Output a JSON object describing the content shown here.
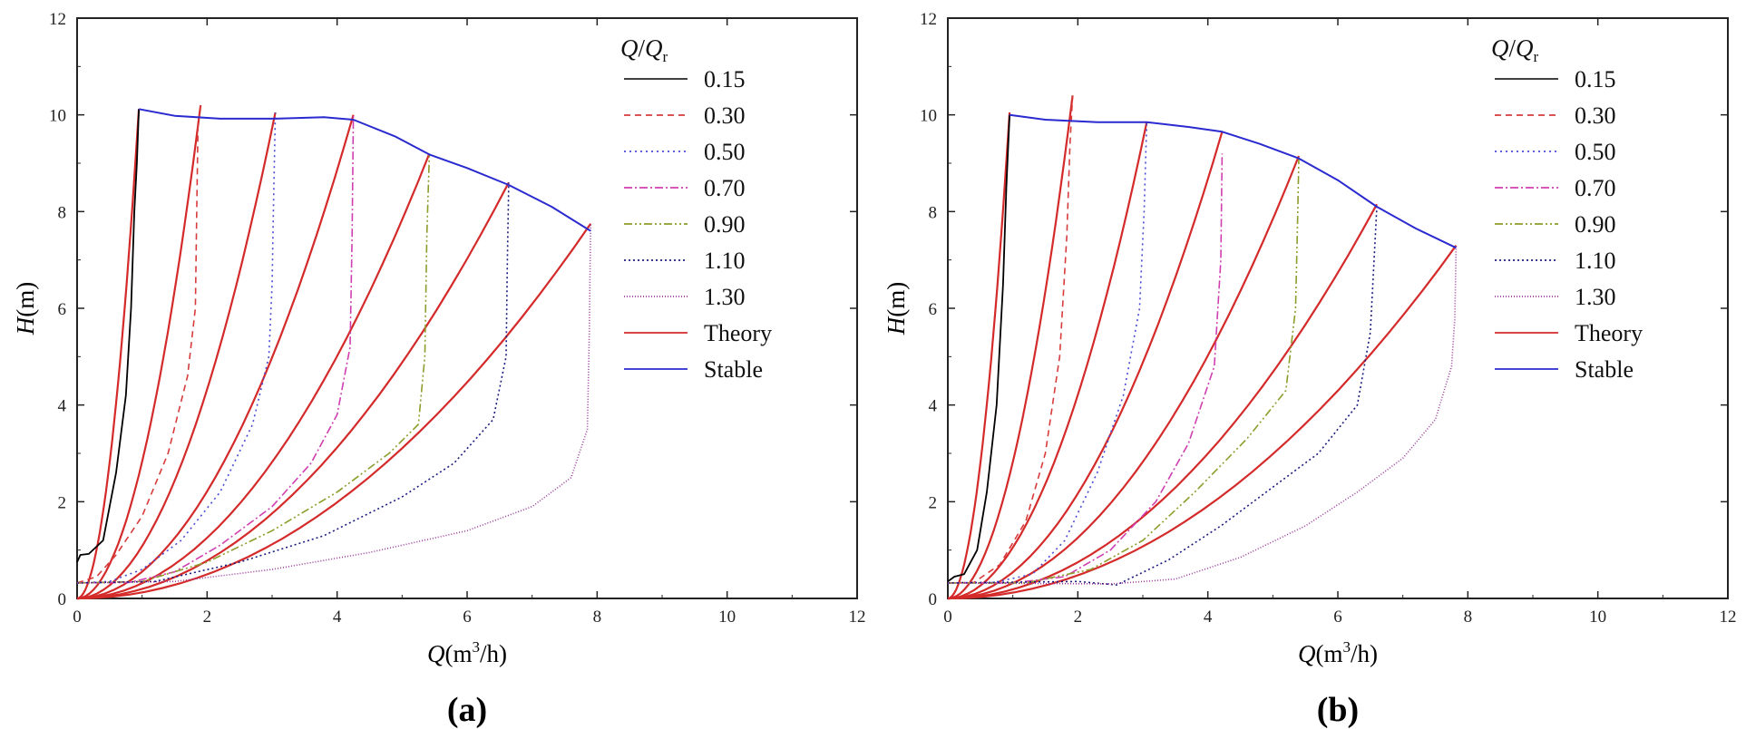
{
  "chart_data": [
    {
      "type": "line",
      "panel_label": "(a)",
      "xlabel": {
        "var": "Q",
        "unit_pre": "(m",
        "unit_sup": "3",
        "unit_post": "/h)"
      },
      "ylabel": {
        "var": "H",
        "unit": "(m)"
      },
      "xlim": [
        0,
        12
      ],
      "ylim": [
        0,
        12
      ],
      "xticks": [
        0,
        2,
        4,
        6,
        8,
        10,
        12
      ],
      "yticks": [
        0,
        2,
        4,
        6,
        8,
        10,
        12
      ],
      "legend": {
        "title_num": "Q",
        "title_sep": "/",
        "title_den": "Q",
        "title_sub": "r",
        "placement": "top-right"
      },
      "series": [
        {
          "name": "0.15",
          "color": "#000000",
          "dash": "",
          "points": [
            [
              0,
              0.75
            ],
            [
              0.05,
              0.9
            ],
            [
              0.18,
              0.92
            ],
            [
              0.4,
              1.2
            ],
            [
              0.6,
              2.6
            ],
            [
              0.75,
              4.2
            ],
            [
              0.83,
              6.0
            ],
            [
              0.88,
              8.0
            ],
            [
              0.92,
              9.0
            ],
            [
              0.95,
              10.12
            ]
          ]
        },
        {
          "name": "0.30",
          "color": "#d83b3b",
          "dash": "7,5",
          "points": [
            [
              0,
              0.32
            ],
            [
              0.3,
              0.45
            ],
            [
              0.6,
              0.9
            ],
            [
              1.0,
              1.7
            ],
            [
              1.4,
              3.0
            ],
            [
              1.7,
              4.6
            ],
            [
              1.82,
              6.0
            ],
            [
              1.84,
              8.0
            ],
            [
              1.86,
              9.8
            ],
            [
              1.9,
              10.2
            ]
          ]
        },
        {
          "name": "0.50",
          "color": "#4a4ad6",
          "dash": "2,4",
          "points": [
            [
              0,
              0.32
            ],
            [
              0.5,
              0.35
            ],
            [
              1.0,
              0.6
            ],
            [
              1.6,
              1.2
            ],
            [
              2.2,
              2.2
            ],
            [
              2.7,
              3.6
            ],
            [
              2.95,
              5.0
            ],
            [
              3.0,
              6.5
            ],
            [
              3.02,
              8.0
            ],
            [
              3.05,
              10.05
            ]
          ]
        },
        {
          "name": "0.70",
          "color": "#d03fb0",
          "dash": "9,3,2,3",
          "points": [
            [
              0,
              0.32
            ],
            [
              0.8,
              0.33
            ],
            [
              1.5,
              0.55
            ],
            [
              2.2,
              1.1
            ],
            [
              3.0,
              1.9
            ],
            [
              3.6,
              2.8
            ],
            [
              4.0,
              3.8
            ],
            [
              4.2,
              5.2
            ],
            [
              4.23,
              7.5
            ],
            [
              4.25,
              10.0
            ]
          ]
        },
        {
          "name": "0.90",
          "color": "#8e9c2a",
          "dash": "9,3,2,3,2,3",
          "points": [
            [
              0,
              0.32
            ],
            [
              1.0,
              0.35
            ],
            [
              2.0,
              0.75
            ],
            [
              3.0,
              1.4
            ],
            [
              4.0,
              2.2
            ],
            [
              4.8,
              3.0
            ],
            [
              5.25,
              3.6
            ],
            [
              5.35,
              5.0
            ],
            [
              5.38,
              7.5
            ],
            [
              5.42,
              9.2
            ]
          ]
        },
        {
          "name": "1.10",
          "color": "#1c1c80",
          "dash": "2,3",
          "points": [
            [
              0,
              0.32
            ],
            [
              1.2,
              0.35
            ],
            [
              2.5,
              0.75
            ],
            [
              3.8,
              1.3
            ],
            [
              5.0,
              2.1
            ],
            [
              5.8,
              2.8
            ],
            [
              6.4,
              3.7
            ],
            [
              6.6,
              5.0
            ],
            [
              6.62,
              7.0
            ],
            [
              6.64,
              8.6
            ]
          ]
        },
        {
          "name": "1.30",
          "color": "#9a3b9a",
          "dash": "1,2",
          "points": [
            [
              0,
              0.32
            ],
            [
              1.5,
              0.35
            ],
            [
              3.0,
              0.6
            ],
            [
              4.5,
              0.95
            ],
            [
              6.0,
              1.4
            ],
            [
              7.0,
              1.9
            ],
            [
              7.6,
              2.5
            ],
            [
              7.85,
              3.5
            ],
            [
              7.88,
              5.5
            ],
            [
              7.9,
              7.75
            ]
          ]
        }
      ],
      "theory": {
        "name": "Theory",
        "color": "#d42a2a",
        "end_points": [
          [
            0.95,
            10.12
          ],
          [
            1.9,
            10.2
          ],
          [
            3.05,
            10.05
          ],
          [
            4.25,
            10.0
          ],
          [
            5.42,
            9.2
          ],
          [
            6.64,
            8.6
          ],
          [
            7.9,
            7.75
          ]
        ]
      },
      "stable": {
        "name": "Stable",
        "color": "#2a2ad0",
        "points": [
          [
            0.95,
            10.12
          ],
          [
            1.5,
            9.98
          ],
          [
            2.2,
            9.92
          ],
          [
            3.05,
            9.92
          ],
          [
            3.8,
            9.95
          ],
          [
            4.25,
            9.9
          ],
          [
            4.9,
            9.55
          ],
          [
            5.42,
            9.18
          ],
          [
            6.0,
            8.9
          ],
          [
            6.64,
            8.55
          ],
          [
            7.3,
            8.1
          ],
          [
            7.9,
            7.6
          ]
        ]
      }
    },
    {
      "type": "line",
      "panel_label": "(b)",
      "xlabel": {
        "var": "Q",
        "unit_pre": "(m",
        "unit_sup": "3",
        "unit_post": "/h)"
      },
      "ylabel": {
        "var": "H",
        "unit": "(m)"
      },
      "xlim": [
        0,
        12
      ],
      "ylim": [
        0,
        12
      ],
      "xticks": [
        0,
        2,
        4,
        6,
        8,
        10,
        12
      ],
      "yticks": [
        0,
        2,
        4,
        6,
        8,
        10,
        12
      ],
      "legend": {
        "title_num": "Q",
        "title_sep": "/",
        "title_den": "Q",
        "title_sub": "r",
        "placement": "top-right"
      },
      "series": [
        {
          "name": "0.15",
          "color": "#000000",
          "dash": "",
          "points": [
            [
              0,
              0.35
            ],
            [
              0.1,
              0.45
            ],
            [
              0.25,
              0.5
            ],
            [
              0.45,
              1.0
            ],
            [
              0.6,
              2.2
            ],
            [
              0.75,
              4.0
            ],
            [
              0.85,
              6.5
            ],
            [
              0.9,
              8.5
            ],
            [
              0.95,
              10.0
            ]
          ]
        },
        {
          "name": "0.30",
          "color": "#d83b3b",
          "dash": "7,5",
          "points": [
            [
              0,
              0.32
            ],
            [
              0.4,
              0.33
            ],
            [
              0.8,
              0.7
            ],
            [
              1.2,
              1.6
            ],
            [
              1.5,
              3.0
            ],
            [
              1.72,
              5.0
            ],
            [
              1.83,
              7.5
            ],
            [
              1.88,
              9.4
            ],
            [
              1.92,
              10.4
            ]
          ]
        },
        {
          "name": "0.50",
          "color": "#4a4ad6",
          "dash": "2,4",
          "points": [
            [
              0,
              0.32
            ],
            [
              0.7,
              0.33
            ],
            [
              1.3,
              0.5
            ],
            [
              1.8,
              1.2
            ],
            [
              2.3,
              2.6
            ],
            [
              2.7,
              4.2
            ],
            [
              2.95,
              6.0
            ],
            [
              3.02,
              8.0
            ],
            [
              3.06,
              9.85
            ]
          ]
        },
        {
          "name": "0.70",
          "color": "#d03fb0",
          "dash": "9,3,2,3",
          "points": [
            [
              0,
              0.32
            ],
            [
              1.0,
              0.32
            ],
            [
              1.8,
              0.45
            ],
            [
              2.5,
              1.0
            ],
            [
              3.2,
              2.0
            ],
            [
              3.7,
              3.2
            ],
            [
              4.1,
              4.8
            ],
            [
              4.2,
              7.0
            ],
            [
              4.22,
              9.2
            ]
          ]
        },
        {
          "name": "0.90",
          "color": "#8e9c2a",
          "dash": "9,3,2,3,2,3",
          "points": [
            [
              0,
              0.32
            ],
            [
              1.2,
              0.32
            ],
            [
              2.2,
              0.6
            ],
            [
              3.0,
              1.2
            ],
            [
              3.8,
              2.2
            ],
            [
              4.6,
              3.3
            ],
            [
              5.2,
              4.3
            ],
            [
              5.35,
              6.0
            ],
            [
              5.38,
              7.8
            ],
            [
              5.4,
              9.1
            ]
          ]
        },
        {
          "name": "1.10",
          "color": "#1c1c80",
          "dash": "2,3",
          "points": [
            [
              0,
              0.32
            ],
            [
              2.0,
              0.35
            ],
            [
              2.6,
              0.28
            ],
            [
              3.4,
              0.8
            ],
            [
              4.2,
              1.5
            ],
            [
              5.0,
              2.3
            ],
            [
              5.7,
              3.0
            ],
            [
              6.3,
              4.0
            ],
            [
              6.5,
              5.5
            ],
            [
              6.6,
              8.1
            ]
          ]
        },
        {
          "name": "1.30",
          "color": "#9a3b9a",
          "dash": "1,2",
          "points": [
            [
              0,
              0.32
            ],
            [
              2.5,
              0.3
            ],
            [
              3.5,
              0.4
            ],
            [
              4.5,
              0.85
            ],
            [
              5.5,
              1.5
            ],
            [
              6.3,
              2.2
            ],
            [
              7.0,
              2.9
            ],
            [
              7.5,
              3.7
            ],
            [
              7.75,
              4.8
            ],
            [
              7.8,
              5.8
            ],
            [
              7.82,
              7.3
            ]
          ]
        }
      ],
      "theory": {
        "name": "Theory",
        "color": "#d42a2a",
        "end_points": [
          [
            0.95,
            10.05
          ],
          [
            1.92,
            10.4
          ],
          [
            3.06,
            9.85
          ],
          [
            4.22,
            9.65
          ],
          [
            5.4,
            9.15
          ],
          [
            6.6,
            8.15
          ],
          [
            7.82,
            7.3
          ]
        ]
      },
      "stable": {
        "name": "Stable",
        "color": "#2a2ad0",
        "points": [
          [
            0.95,
            10.0
          ],
          [
            1.5,
            9.9
          ],
          [
            2.3,
            9.85
          ],
          [
            3.06,
            9.85
          ],
          [
            3.7,
            9.75
          ],
          [
            4.22,
            9.65
          ],
          [
            4.8,
            9.4
          ],
          [
            5.4,
            9.1
          ],
          [
            6.0,
            8.65
          ],
          [
            6.6,
            8.1
          ],
          [
            7.2,
            7.65
          ],
          [
            7.82,
            7.25
          ]
        ]
      }
    }
  ]
}
